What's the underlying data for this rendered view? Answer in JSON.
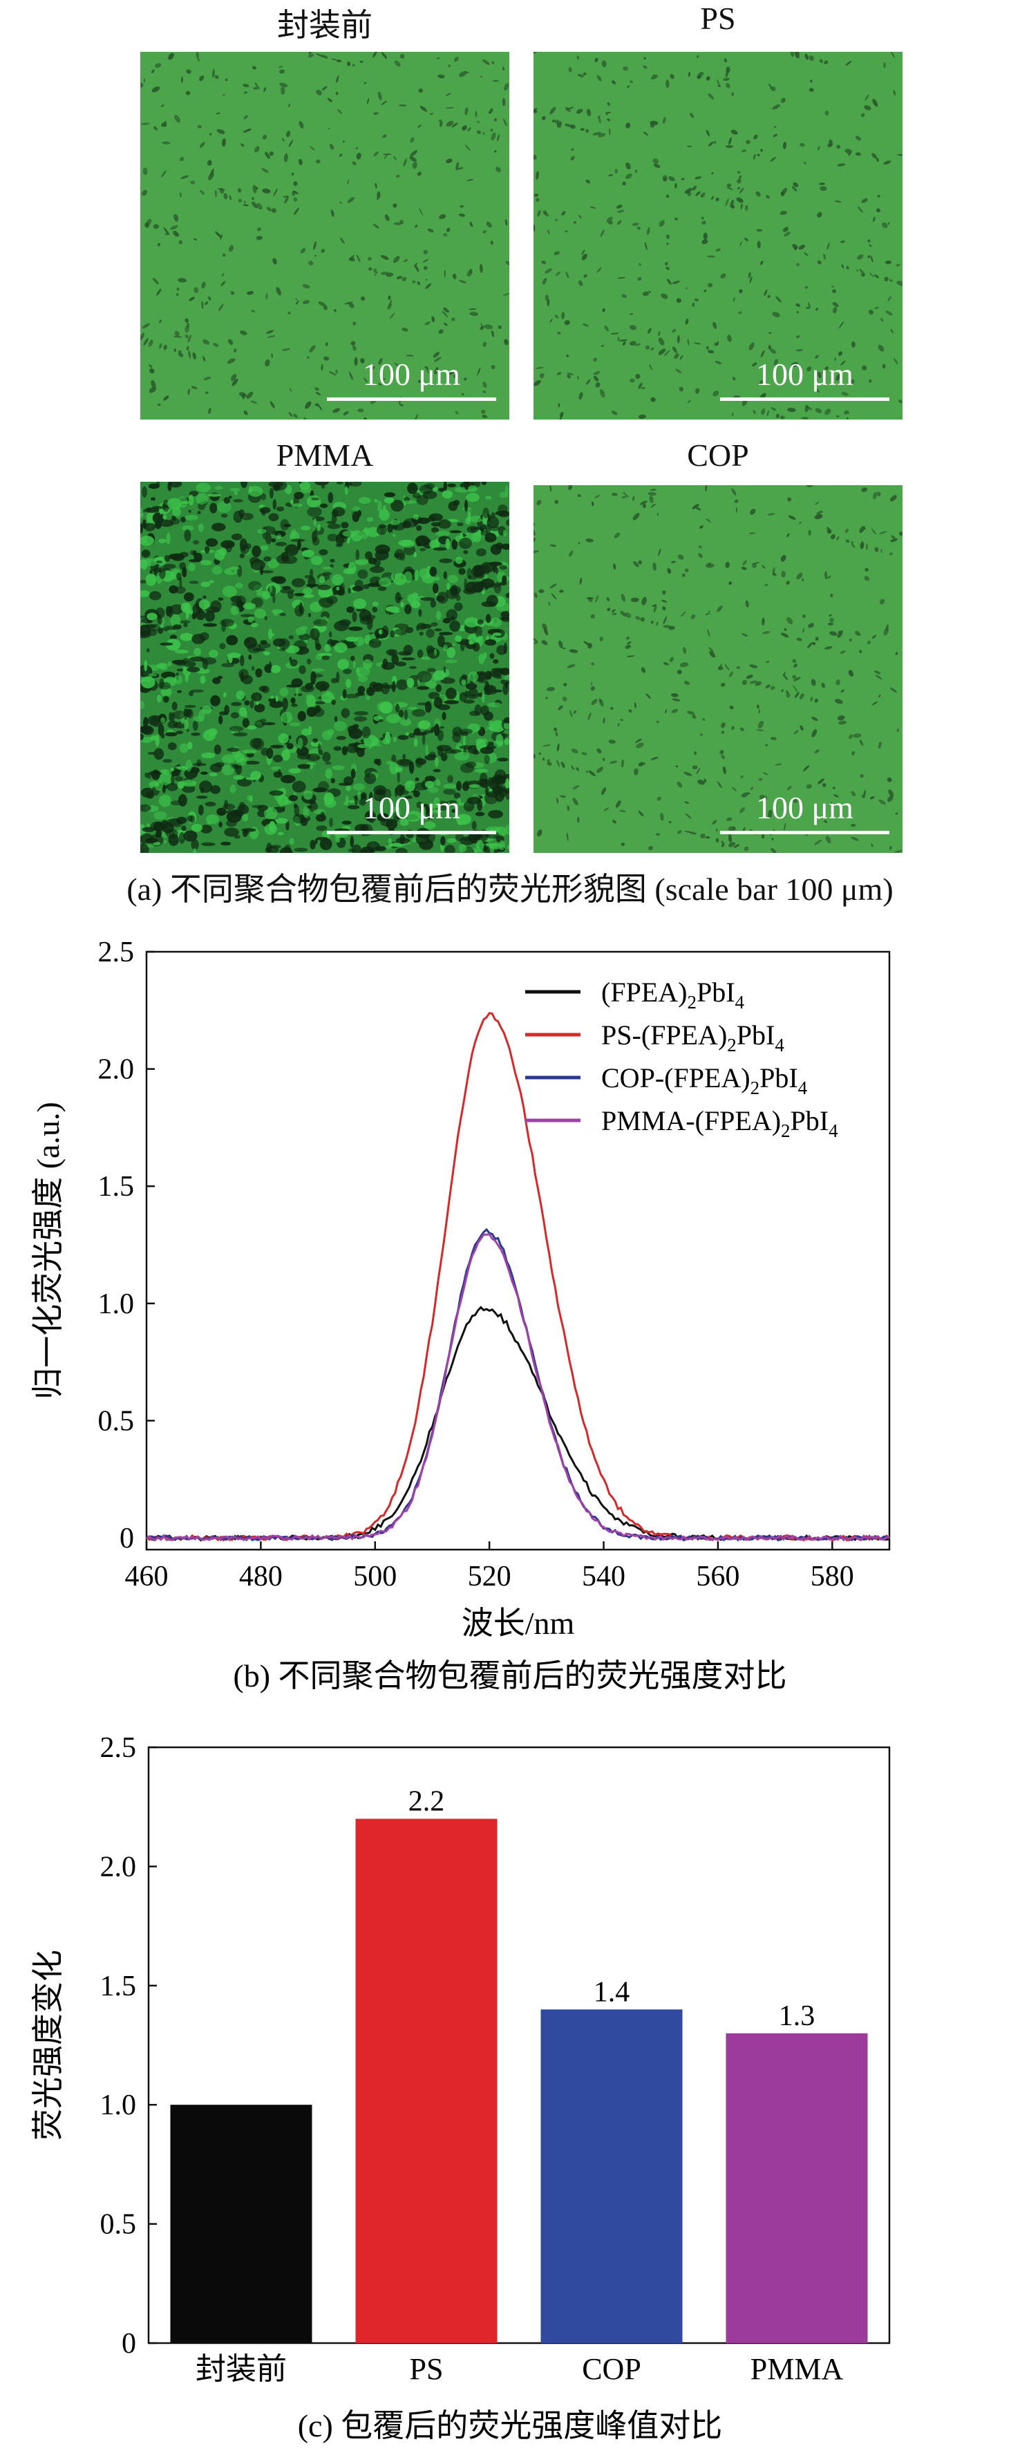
{
  "panel_a": {
    "images": [
      {
        "title": "封装前",
        "scale": "100 μm"
      },
      {
        "title": "PS",
        "scale": "100 μm"
      },
      {
        "title": "PMMA",
        "scale": "100 μm"
      },
      {
        "title": "COP",
        "scale": "100 μm"
      }
    ],
    "caption": "(a) 不同聚合物包覆前后的荧光形貌图 (scale bar 100 μm)"
  },
  "chart_data": [
    {
      "type": "line",
      "xlabel": "波长/nm",
      "ylabel": "归一化荧光强度 (a.u.)",
      "xlim": [
        460,
        590
      ],
      "ylim": [
        -0.05,
        2.5
      ],
      "xticks": [
        "460",
        "480",
        "500",
        "520",
        "540",
        "560",
        "580"
      ],
      "yticks": [
        "0",
        "0.5",
        "1.0",
        "1.5",
        "2.0",
        "2.5"
      ],
      "legend_position": "top-right",
      "series": [
        {
          "name": "(FPEA)2PbI4",
          "name_parts": [
            "(FPEA)",
            "2",
            "PbI",
            "4"
          ],
          "color": "#111111",
          "peak": 0.98,
          "center": 519,
          "sigma_left": 7.5,
          "sigma_right": 10.5
        },
        {
          "name": "PS-(FPEA)2PbI4",
          "name_parts": [
            "PS-(FPEA)",
            "2",
            "PbI",
            "4"
          ],
          "color": "#d62828",
          "peak": 2.23,
          "center": 520,
          "sigma_left": 7.5,
          "sigma_right": 9.5
        },
        {
          "name": "COP-(FPEA)2PbI4",
          "name_parts": [
            "COP-(FPEA)",
            "2",
            "PbI",
            "4"
          ],
          "color": "#2b3a8f",
          "peak": 1.31,
          "center": 519.5,
          "sigma_left": 6.5,
          "sigma_right": 8.0
        },
        {
          "name": "PMMA-(FPEA)2PbI4",
          "name_parts": [
            "PMMA-(FPEA)",
            "2",
            "PbI",
            "4"
          ],
          "color": "#a040a8",
          "peak": 1.29,
          "center": 519.5,
          "sigma_left": 6.5,
          "sigma_right": 8.0
        }
      ],
      "caption": "(b) 不同聚合物包覆前后的荧光强度对比"
    },
    {
      "type": "bar",
      "ylabel": "荧光强度变化",
      "categories": [
        "封装前",
        "PS",
        "COP",
        "PMMA"
      ],
      "values": [
        1.0,
        2.2,
        1.4,
        1.3
      ],
      "data_labels": [
        "",
        "2.2",
        "1.4",
        "1.3"
      ],
      "colors": [
        "#0a0a0a",
        "#e0262b",
        "#2f4a9f",
        "#9b3c9a"
      ],
      "ylim": [
        0,
        2.5
      ],
      "yticks": [
        "0",
        "0.5",
        "1.0",
        "1.5",
        "2.0",
        "2.5"
      ],
      "caption": "(c) 包覆后的荧光强度峰值对比"
    }
  ]
}
